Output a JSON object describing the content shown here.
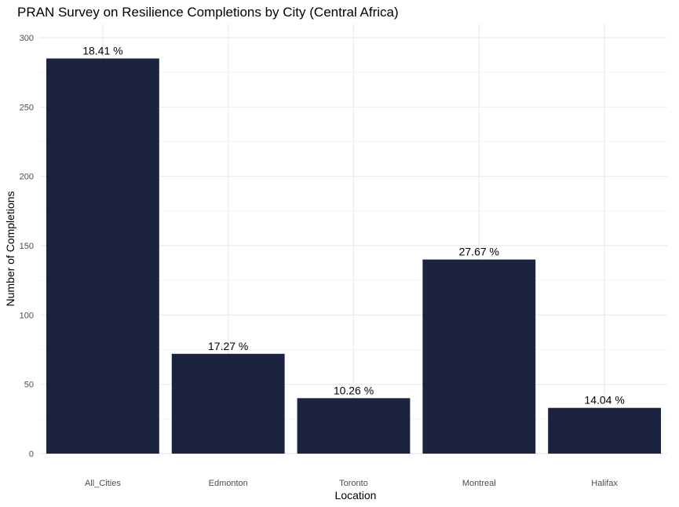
{
  "chart_data": {
    "type": "bar",
    "title": "PRAN Survey on Resilience Completions by City (Central Africa)",
    "xlabel": "Location",
    "ylabel": "Number of Completions",
    "categories": [
      "All_Cities",
      "Edmonton",
      "Toronto",
      "Montreal",
      "Halifax"
    ],
    "values": [
      285,
      72,
      40,
      140,
      33
    ],
    "data_labels": [
      "18.41 %",
      "17.27 %",
      "10.26 %",
      "27.67 %",
      "14.04 %"
    ],
    "yticks": [
      0,
      50,
      100,
      150,
      200,
      250,
      300
    ],
    "ylim": [
      0,
      300
    ],
    "grid": true,
    "legend": "none",
    "colors": {
      "bar": "#1c2340",
      "grid_major": "#ebebeb",
      "grid_minor": "#f3f3f3",
      "tick_text": "#4d4d4d"
    }
  }
}
